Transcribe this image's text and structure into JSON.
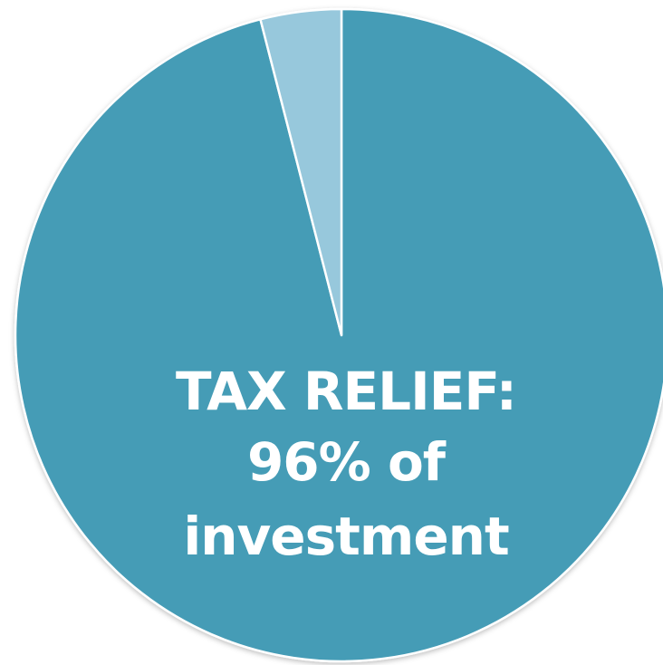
{
  "chart_data": {
    "type": "pie",
    "slices": [
      {
        "label": "Tax relief",
        "value": 96,
        "color": "#449cb6"
      },
      {
        "label": "",
        "value": 4,
        "color": "#97c8dc"
      }
    ],
    "annotation": {
      "line1": "TAX RELIEF:",
      "line2": "96% of",
      "line3": "investment"
    },
    "start_angle_deg": 0,
    "direction": "clockwise"
  }
}
